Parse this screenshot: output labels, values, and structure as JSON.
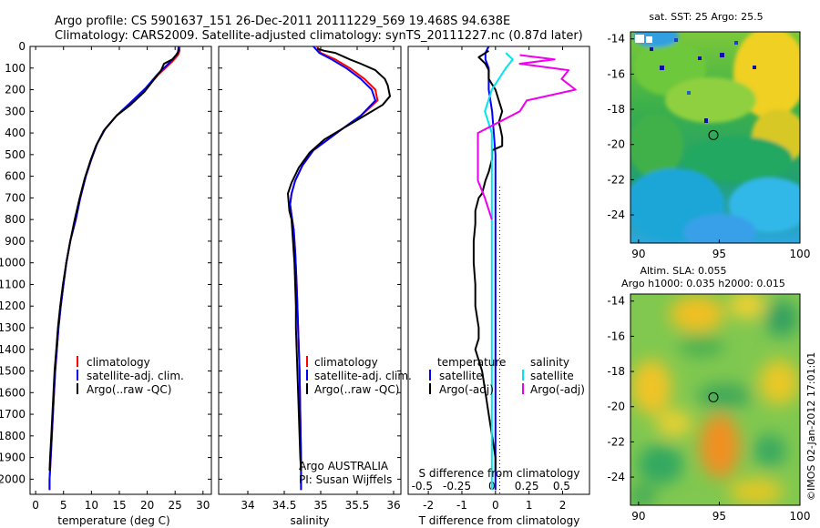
{
  "header": {
    "line1": "Argo profile: CS 5901637_151 26-Dec-2011 20111229_569 19.468S 94.638E",
    "line2": "Climatology: CARS2009. Satellite-adjusted climatology: synTS_20111227.nc (0.87d later)"
  },
  "colors": {
    "climatology": "#ff0000",
    "satellite": "#0000ff",
    "argo": "#000000",
    "salinity_satellite": "#00e5ee",
    "salinity_argo": "#ee00ee"
  },
  "chart_data": [
    {
      "type": "line",
      "xlabel": "temperature (deg C)",
      "ylabel": "",
      "xlim": [
        -1,
        31.5
      ],
      "ylim": [
        2070,
        0
      ],
      "xticks": [
        "0",
        "5",
        "10",
        "15",
        "20",
        "25",
        "30"
      ],
      "yticks": [
        "0",
        "100",
        "200",
        "300",
        "400",
        "500",
        "600",
        "700",
        "800",
        "900",
        "1000",
        "1100",
        "1200",
        "1300",
        "1400",
        "1500",
        "1600",
        "1700",
        "1800",
        "1900",
        "2000"
      ],
      "legend": [
        "climatology",
        "satellite-adj. clim.",
        "Argo(..raw -QC)"
      ],
      "series": [
        {
          "name": "climatology",
          "color": "#ff0000",
          "points": [
            [
              25.8,
              0
            ],
            [
              25.8,
              20
            ],
            [
              25.5,
              40
            ],
            [
              24.5,
              70
            ],
            [
              22,
              130
            ],
            [
              20,
              190
            ],
            [
              17,
              260
            ],
            [
              14.5,
              320
            ],
            [
              12.5,
              380
            ],
            [
              11,
              450
            ],
            [
              10,
              520
            ],
            [
              9,
              600
            ],
            [
              8,
              700
            ],
            [
              7.2,
              800
            ],
            [
              6.2,
              900
            ],
            [
              5.5,
              1000
            ],
            [
              5,
              1100
            ],
            [
              4.5,
              1200
            ],
            [
              4.1,
              1300
            ],
            [
              3.8,
              1400
            ],
            [
              3.5,
              1500
            ],
            [
              3.3,
              1600
            ],
            [
              3.1,
              1700
            ],
            [
              2.9,
              1800
            ],
            [
              2.7,
              1900
            ],
            [
              2.5,
              2000
            ],
            [
              2.5,
              2050
            ]
          ]
        },
        {
          "name": "satellite-adj. clim.",
          "color": "#0000ff",
          "points": [
            [
              25.6,
              0
            ],
            [
              25.6,
              20
            ],
            [
              25.2,
              40
            ],
            [
              24.2,
              70
            ],
            [
              21.8,
              130
            ],
            [
              19.8,
              190
            ],
            [
              17,
              260
            ],
            [
              14.5,
              320
            ],
            [
              12.5,
              380
            ],
            [
              11,
              450
            ],
            [
              10,
              520
            ],
            [
              9,
              600
            ],
            [
              8,
              700
            ],
            [
              7.2,
              800
            ],
            [
              6.2,
              900
            ],
            [
              5.5,
              1000
            ],
            [
              5,
              1100
            ],
            [
              4.5,
              1200
            ],
            [
              4.1,
              1300
            ],
            [
              3.8,
              1400
            ],
            [
              3.5,
              1500
            ],
            [
              3.3,
              1600
            ],
            [
              3.1,
              1700
            ],
            [
              2.9,
              1800
            ],
            [
              2.7,
              1900
            ],
            [
              2.5,
              2000
            ],
            [
              2.5,
              2050
            ]
          ]
        },
        {
          "name": "Argo(..raw -QC)",
          "color": "#000000",
          "points": [
            [
              25.6,
              10
            ],
            [
              25.5,
              30
            ],
            [
              24.5,
              60
            ],
            [
              23,
              80
            ],
            [
              22.5,
              110
            ],
            [
              21,
              160
            ],
            [
              19.5,
              210
            ],
            [
              17,
              270
            ],
            [
              14.5,
              320
            ],
            [
              12.2,
              390
            ],
            [
              10.8,
              460
            ],
            [
              9.8,
              530
            ],
            [
              8.8,
              610
            ],
            [
              7.9,
              700
            ],
            [
              7,
              800
            ],
            [
              6.2,
              900
            ],
            [
              5.5,
              1000
            ],
            [
              4.9,
              1100
            ],
            [
              4.4,
              1200
            ],
            [
              4,
              1300
            ],
            [
              3.7,
              1400
            ],
            [
              3.4,
              1500
            ],
            [
              3.2,
              1600
            ],
            [
              3,
              1700
            ],
            [
              2.8,
              1800
            ],
            [
              2.6,
              1900
            ],
            [
              2.5,
              1960
            ]
          ]
        }
      ]
    },
    {
      "type": "line",
      "xlabel": "salinity",
      "ylabel": "",
      "xlim": [
        33.6,
        36.1
      ],
      "ylim": [
        2070,
        0
      ],
      "xticks": [
        "34",
        "34.5",
        "35",
        "35.5",
        "36"
      ],
      "legend": [
        "climatology",
        "satellite-adj. clim.",
        "Argo(..raw -QC)"
      ],
      "annotation": [
        "Argo AUSTRALIA",
        "PI: Susan Wijffels"
      ],
      "series": [
        {
          "name": "climatology",
          "color": "#ff0000",
          "points": [
            [
              34.95,
              0
            ],
            [
              35,
              30
            ],
            [
              35.2,
              60
            ],
            [
              35.4,
              100
            ],
            [
              35.6,
              150
            ],
            [
              35.75,
              200
            ],
            [
              35.78,
              250
            ],
            [
              35.55,
              320
            ],
            [
              35.3,
              380
            ],
            [
              35.1,
              430
            ],
            [
              34.9,
              480
            ],
            [
              34.75,
              550
            ],
            [
              34.65,
              620
            ],
            [
              34.6,
              680
            ],
            [
              34.58,
              730
            ],
            [
              34.6,
              780
            ],
            [
              34.63,
              850
            ],
            [
              34.65,
              950
            ],
            [
              34.67,
              1100
            ],
            [
              34.69,
              1300
            ],
            [
              34.71,
              1500
            ],
            [
              34.72,
              1700
            ],
            [
              34.73,
              1900
            ],
            [
              34.73,
              2050
            ]
          ]
        },
        {
          "name": "satellite-adj. clim.",
          "color": "#0000ff",
          "points": [
            [
              34.9,
              0
            ],
            [
              34.98,
              30
            ],
            [
              35.15,
              60
            ],
            [
              35.35,
              100
            ],
            [
              35.55,
              150
            ],
            [
              35.7,
              200
            ],
            [
              35.75,
              250
            ],
            [
              35.55,
              320
            ],
            [
              35.3,
              380
            ],
            [
              35.1,
              430
            ],
            [
              34.9,
              480
            ],
            [
              34.75,
              550
            ],
            [
              34.65,
              620
            ],
            [
              34.6,
              680
            ],
            [
              34.58,
              730
            ],
            [
              34.6,
              780
            ],
            [
              34.63,
              850
            ],
            [
              34.65,
              950
            ],
            [
              34.67,
              1100
            ],
            [
              34.69,
              1300
            ],
            [
              34.71,
              1500
            ],
            [
              34.72,
              1700
            ],
            [
              34.73,
              1900
            ],
            [
              34.73,
              2050
            ]
          ]
        },
        {
          "name": "Argo(..raw -QC)",
          "color": "#000000",
          "points": [
            [
              34.95,
              10
            ],
            [
              35.05,
              20
            ],
            [
              35.2,
              30
            ],
            [
              35.4,
              60
            ],
            [
              35.55,
              80
            ],
            [
              35.75,
              110
            ],
            [
              35.88,
              150
            ],
            [
              35.92,
              180
            ],
            [
              35.95,
              230
            ],
            [
              35.85,
              270
            ],
            [
              35.6,
              320
            ],
            [
              35.3,
              380
            ],
            [
              35.05,
              430
            ],
            [
              34.85,
              490
            ],
            [
              34.7,
              560
            ],
            [
              34.6,
              630
            ],
            [
              34.55,
              680
            ],
            [
              34.56,
              720
            ],
            [
              34.57,
              760
            ],
            [
              34.6,
              800
            ],
            [
              34.62,
              900
            ],
            [
              34.64,
              1000
            ],
            [
              34.66,
              1200
            ],
            [
              34.66,
              1300
            ],
            [
              34.68,
              1500
            ],
            [
              34.7,
              1700
            ],
            [
              34.72,
              1900
            ],
            [
              34.73,
              1960
            ]
          ]
        }
      ]
    },
    {
      "type": "line",
      "xlabel": "T difference from climatology",
      "x2label": "S difference from climatology",
      "ylabel": "",
      "xlim": [
        -2.6,
        2.8
      ],
      "ylim": [
        2070,
        0
      ],
      "xticks": [
        "-2",
        "-1",
        "0",
        "1",
        "2"
      ],
      "x2ticks": [
        "-0.5",
        "-0.25",
        "0",
        "0.25",
        "0.5"
      ],
      "legend": [
        "temperature",
        "satellite",
        "Argo(-adj)",
        "salinity",
        "satellite",
        "Argo(-adj)"
      ],
      "series": [
        {
          "name": "temperature satellite",
          "color": "#0000ff",
          "points": [
            [
              -0.2,
              0
            ],
            [
              -0.3,
              30
            ],
            [
              -0.3,
              60
            ],
            [
              -0.2,
              100
            ],
            [
              -0.2,
              200
            ],
            [
              -0.1,
              300
            ],
            [
              0,
              500
            ],
            [
              0,
              2050
            ]
          ]
        },
        {
          "name": "temperature Argo(-adj)",
          "color": "#000000",
          "points": [
            [
              -0.2,
              20
            ],
            [
              -0.5,
              50
            ],
            [
              -0.3,
              80
            ],
            [
              -0.2,
              110
            ],
            [
              -0.2,
              150
            ],
            [
              0,
              200
            ],
            [
              0.1,
              250
            ],
            [
              0.2,
              300
            ],
            [
              0.1,
              350
            ],
            [
              0.15,
              380
            ],
            [
              0.2,
              420
            ],
            [
              0.2,
              460
            ],
            [
              -0.1,
              480
            ],
            [
              -0.1,
              520
            ],
            [
              -0.2,
              580
            ],
            [
              -0.3,
              620
            ],
            [
              -0.4,
              680
            ],
            [
              -0.5,
              700
            ],
            [
              -0.6,
              760
            ],
            [
              -0.6,
              820
            ],
            [
              -0.65,
              900
            ],
            [
              -0.65,
              1000
            ],
            [
              -0.6,
              1100
            ],
            [
              -0.6,
              1200
            ],
            [
              -0.5,
              1300
            ],
            [
              -0.5,
              1350
            ],
            [
              -0.6,
              1400
            ],
            [
              -0.4,
              1500
            ],
            [
              -0.3,
              1600
            ],
            [
              -0.2,
              1700
            ],
            [
              -0.1,
              1800
            ],
            [
              0,
              1900
            ],
            [
              0,
              1960
            ]
          ]
        },
        {
          "name": "salinity satellite",
          "color": "#00e5ee",
          "points": [
            [
              0.1,
              30
            ],
            [
              0.15,
              60
            ],
            [
              0.1,
              100
            ],
            [
              0.05,
              150
            ],
            [
              0,
              200
            ],
            [
              -0.05,
              300
            ],
            [
              0,
              400
            ],
            [
              0,
              500
            ],
            [
              0,
              2050
            ]
          ]
        },
        {
          "name": "salinity Argo(-adj)",
          "color": "#ee00ee",
          "points": [
            [
              0.2,
              40
            ],
            [
              0.45,
              60
            ],
            [
              0.2,
              80
            ],
            [
              0.55,
              110
            ],
            [
              0.5,
              150
            ],
            [
              0.6,
              200
            ],
            [
              0.25,
              250
            ],
            [
              0.2,
              300
            ],
            [
              0.05,
              350
            ],
            [
              -0.1,
              400
            ],
            [
              -0.1,
              450
            ],
            [
              -0.1,
              550
            ],
            [
              -0.1,
              620
            ],
            [
              -0.05,
              700
            ],
            [
              0,
              800
            ]
          ]
        }
      ]
    },
    {
      "type": "heatmap",
      "title": "sat. SST: 25  Argo: 25.5",
      "xlim": [
        89.5,
        100
      ],
      "ylim": [
        -25.6,
        -13.6
      ],
      "xticks": [
        "90",
        "95",
        "100"
      ],
      "yticks": [
        "-14",
        "-16",
        "-18",
        "-20",
        "-22",
        "-24"
      ],
      "marker": [
        94.638,
        -19.468
      ]
    },
    {
      "type": "heatmap",
      "title": "Altim. SLA: 0.055",
      "subtitle": "Argo h1000: 0.035 h2000: 0.015",
      "xlim": [
        89.5,
        100
      ],
      "ylim": [
        -25.6,
        -13.6
      ],
      "xticks": [
        "90",
        "95",
        "100"
      ],
      "yticks": [
        "-14",
        "-16",
        "-18",
        "-20",
        "-22",
        "-24"
      ],
      "marker": [
        94.638,
        -19.468
      ]
    }
  ],
  "footer": {
    "stamp": "©IMOS 02-Jan-2012 17:01:01"
  }
}
